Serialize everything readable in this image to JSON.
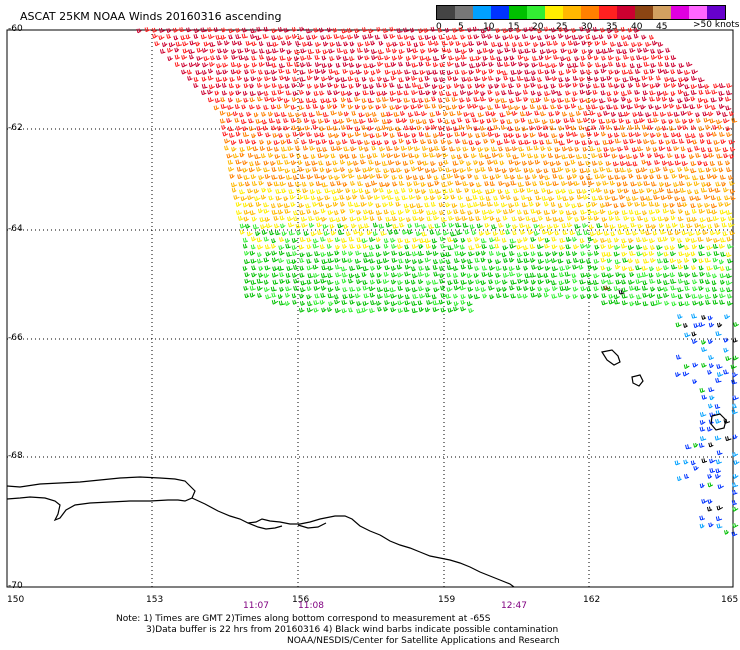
{
  "title": "ASCAT 25KM NOAA Winds 20160316 ascending",
  "legend": {
    "colors": [
      "#444444",
      "#777777",
      "#00a0ff",
      "#0033ff",
      "#00c000",
      "#33ee33",
      "#ffee00",
      "#ffb800",
      "#ff8000",
      "#ff2020",
      "#cc0030",
      "#8b4513",
      "#d2a060",
      "#e000e0",
      "#ff66ff",
      "#6600cc"
    ],
    "labels": [
      "0",
      "5",
      "10",
      "15",
      "20",
      "25",
      "30",
      "35",
      "40",
      "45"
    ],
    "unit": ">50 knots"
  },
  "map": {
    "lat_labels": [
      "-60",
      "-62",
      "-64",
      "-66",
      "-68",
      "-70"
    ],
    "lon_labels": [
      "150",
      "153",
      "156",
      "159",
      "162",
      "165"
    ],
    "times": [
      "11:07",
      "11:08",
      "12:47"
    ]
  },
  "notes": [
    "Note: 1) Times are GMT 2)Times along bottom correspond to measurement at -65S",
    "3)Data buffer is 22 hrs from 20160316 4) Black wind barbs indicate possible contamination",
    "NOAA/NESDIS/Center for Satellite Applications and Research"
  ]
}
